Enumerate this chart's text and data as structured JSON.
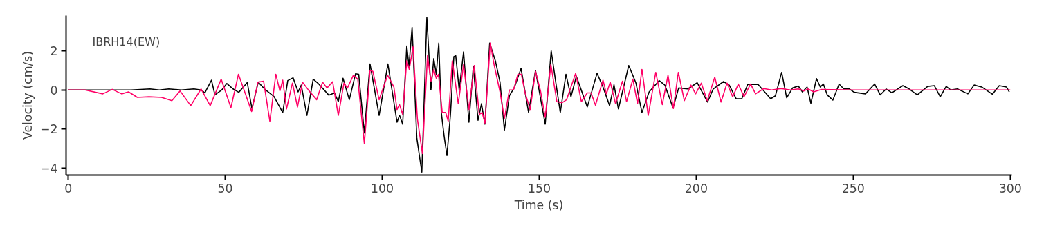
{
  "chart_data": {
    "type": "line",
    "xlabel": "Time (s)",
    "ylabel": "Velocity (cm/s)",
    "annotations": [
      "IBRH14(EW)"
    ],
    "xlim": [
      -0.7,
      300.5
    ],
    "ylim": [
      -4.35,
      3.8
    ],
    "xticks": [
      0,
      50,
      100,
      150,
      200,
      250,
      300
    ],
    "yticks": [
      -4,
      -2,
      0,
      2
    ],
    "grid": false,
    "marker": "none",
    "line_style": "solid",
    "series": [
      {
        "color": "#000000",
        "x": [
          0,
          10,
          20,
          26,
          29,
          32,
          36,
          40,
          42.3,
          43.5,
          45.6,
          46.7,
          48.9,
          50.5,
          52.5,
          54.3,
          57,
          58.5,
          60.5,
          62.5,
          65.5,
          68.3,
          69.9,
          71.6,
          73.2,
          74.2,
          76,
          78,
          79.5,
          83,
          84.8,
          86,
          87.5,
          89.5,
          91.5,
          92.5,
          94.3,
          96.1,
          99,
          101.8,
          104.7,
          105.5,
          106.5,
          107.8,
          108.5,
          109.5,
          111,
          112.6,
          114.2,
          115.5,
          116.4,
          117.2,
          118,
          118.8,
          119.7,
          120.6,
          121.7,
          122.8,
          123.4,
          124.5,
          125.9,
          127.6,
          129,
          130.5,
          131.6,
          132.7,
          134.2,
          136,
          137.5,
          138.9,
          140.5,
          142,
          144.2,
          146.6,
          148.8,
          151.9,
          153.8,
          155.3,
          156.7,
          158.5,
          160.1,
          161.8,
          165.3,
          168.4,
          170.3,
          172.4,
          173.8,
          175.2,
          178.5,
          180.8,
          182.7,
          185,
          188.2,
          190,
          192.6,
          194.4,
          197.3,
          200.3,
          203.6,
          205.4,
          208.7,
          210.5,
          212.7,
          214.5,
          216.4,
          219.7,
          223.7,
          225.2,
          227.2,
          228.8,
          230.7,
          232.5,
          233.8,
          235.3,
          236.5,
          238.3,
          239.5,
          240.5,
          241.7,
          243.5,
          245.5,
          247,
          248.8,
          250.3,
          253.9,
          256.8,
          258.6,
          260.5,
          262.3,
          265.8,
          267.8,
          270.4,
          273.7,
          275.8,
          277.7,
          279.6,
          281,
          283.2,
          286.5,
          288.5,
          290.9,
          294.3,
          296.5,
          298.8,
          299.7
        ],
        "values": [
          0,
          0,
          0,
          0.05,
          0,
          0.05,
          0,
          0.05,
          0,
          -0.15,
          0.5,
          -0.25,
          0,
          0.33,
          0.05,
          -0.12,
          0.38,
          -0.95,
          0.4,
          0.05,
          -0.33,
          -1.15,
          0.48,
          0.62,
          -0.1,
          0.25,
          -1.3,
          0.55,
          0.35,
          -0.27,
          -0.15,
          -0.6,
          0.6,
          -0.5,
          0.83,
          0.8,
          -2.2,
          1.33,
          -1.3,
          1.33,
          -1.65,
          -1.3,
          -1.75,
          2.25,
          1.2,
          3.2,
          -2.45,
          -4.2,
          3.7,
          0,
          1.6,
          0.8,
          2.4,
          -1.15,
          -2.35,
          -3.35,
          -1.3,
          1.7,
          1.75,
          0,
          1.95,
          -1.65,
          1.2,
          -1.55,
          -0.7,
          -1.75,
          2.4,
          1.5,
          0.4,
          -2.05,
          -0.3,
          0.1,
          1.1,
          -1.15,
          1.0,
          -1.75,
          2.0,
          0.35,
          -1.15,
          0.8,
          -0.35,
          0.7,
          -0.87,
          0.85,
          0.15,
          -0.8,
          0.27,
          -0.97,
          1.25,
          0.35,
          -1.15,
          -0.1,
          0.48,
          0.25,
          -0.92,
          0.1,
          0.05,
          0.37,
          -0.62,
          0.05,
          0.43,
          0.25,
          -0.45,
          -0.45,
          0.28,
          0.28,
          -0.45,
          -0.3,
          0.9,
          -0.4,
          0.1,
          0.2,
          -0.1,
          0.15,
          -0.68,
          0.58,
          0.15,
          0.3,
          -0.25,
          -0.52,
          0.3,
          0.05,
          0.05,
          -0.12,
          -0.2,
          0.3,
          -0.25,
          0.05,
          -0.15,
          0.22,
          0.05,
          -0.25,
          0.18,
          0.22,
          -0.35,
          0.18,
          0,
          0.05,
          -0.2,
          0.25,
          0.15,
          -0.22,
          0.22,
          0.15,
          -0.1
        ]
      },
      {
        "color": "#ff0066",
        "x": [
          0,
          5.4,
          11,
          14,
          17,
          19.2,
          22,
          25.7,
          29.7,
          33,
          35.6,
          39,
          42.3,
          45.2,
          48.7,
          51.8,
          54.2,
          56.3,
          58.4,
          60.4,
          62.2,
          64.2,
          66.1,
          67.4,
          68.3,
          69.5,
          71.4,
          73,
          74.6,
          76.7,
          79.1,
          81,
          82.4,
          84.2,
          86,
          87.8,
          88.9,
          90.8,
          92.2,
          94.3,
          96.1,
          97,
          99,
          101.7,
          103.7,
          104.7,
          105.5,
          106.5,
          107.8,
          108.6,
          109.8,
          111.2,
          112.8,
          114.4,
          115.5,
          116.4,
          117.2,
          117.9,
          119.1,
          120.2,
          121,
          122.3,
          124.2,
          125.9,
          127.6,
          129.3,
          130.9,
          131.8,
          132.7,
          134.4,
          135.6,
          137.5,
          138.9,
          140.5,
          141.8,
          143.2,
          144.3,
          145.5,
          147.1,
          148.8,
          150.4,
          151.9,
          153.7,
          155.6,
          157.3,
          158.7,
          161.6,
          163.4,
          165.3,
          166.5,
          167.9,
          170.3,
          171.4,
          172.6,
          174.3,
          176.5,
          177.8,
          179.8,
          181.3,
          182.7,
          184.7,
          187.1,
          189.2,
          191,
          192.7,
          194.3,
          196.2,
          198.3,
          199.8,
          201.6,
          203.5,
          205.9,
          207.9,
          209.8,
          211.6,
          213.4,
          215.2,
          217.3,
          218.9,
          221.5,
          224,
          227,
          230,
          232.5,
          234.3,
          235.6,
          237.4,
          239.7,
          250,
          300
        ],
        "values": [
          0,
          0,
          -0.2,
          0.03,
          -0.2,
          -0.1,
          -0.38,
          -0.35,
          -0.38,
          -0.55,
          -0.05,
          -0.8,
          0.05,
          -0.8,
          0.55,
          -0.9,
          0.8,
          -0.15,
          -1.1,
          0.4,
          0.45,
          -1.6,
          0.8,
          -0.05,
          0.5,
          -0.97,
          0.35,
          -0.87,
          0.4,
          -0.05,
          -0.5,
          0.4,
          0.1,
          0.42,
          -1.3,
          0.35,
          0.1,
          0.75,
          0.55,
          -2.75,
          1.0,
          0.95,
          -0.5,
          0.75,
          0.15,
          -1.0,
          -0.75,
          -1.25,
          1.5,
          1.05,
          2.2,
          -1.5,
          -3.25,
          1.75,
          0.45,
          1.05,
          0.6,
          0.8,
          -1.15,
          -1.15,
          -1.6,
          1.5,
          -0.7,
          1.3,
          -1.0,
          1.25,
          -1.25,
          -1.15,
          -1.7,
          2.4,
          1.3,
          -0.1,
          -1.45,
          0,
          0,
          0.8,
          0.8,
          -0.15,
          -1.0,
          0.95,
          -0.05,
          -1.4,
          1.3,
          -0.6,
          -0.65,
          -0.5,
          0.85,
          -0.6,
          -0.15,
          -0.15,
          -0.78,
          0.5,
          -0.2,
          0.4,
          -0.7,
          0.45,
          -0.6,
          0.55,
          -0.7,
          1.05,
          -1.3,
          0.9,
          -0.75,
          0.75,
          -0.95,
          0.9,
          -0.55,
          0.25,
          -0.2,
          0.35,
          -0.55,
          0.65,
          -0.62,
          0.35,
          -0.35,
          0.3,
          -0.35,
          0.3,
          -0.2,
          0.07,
          0,
          0.07,
          0,
          0.05,
          -0.05,
          0.05,
          -0.1,
          0.02,
          0,
          0
        ]
      }
    ]
  }
}
